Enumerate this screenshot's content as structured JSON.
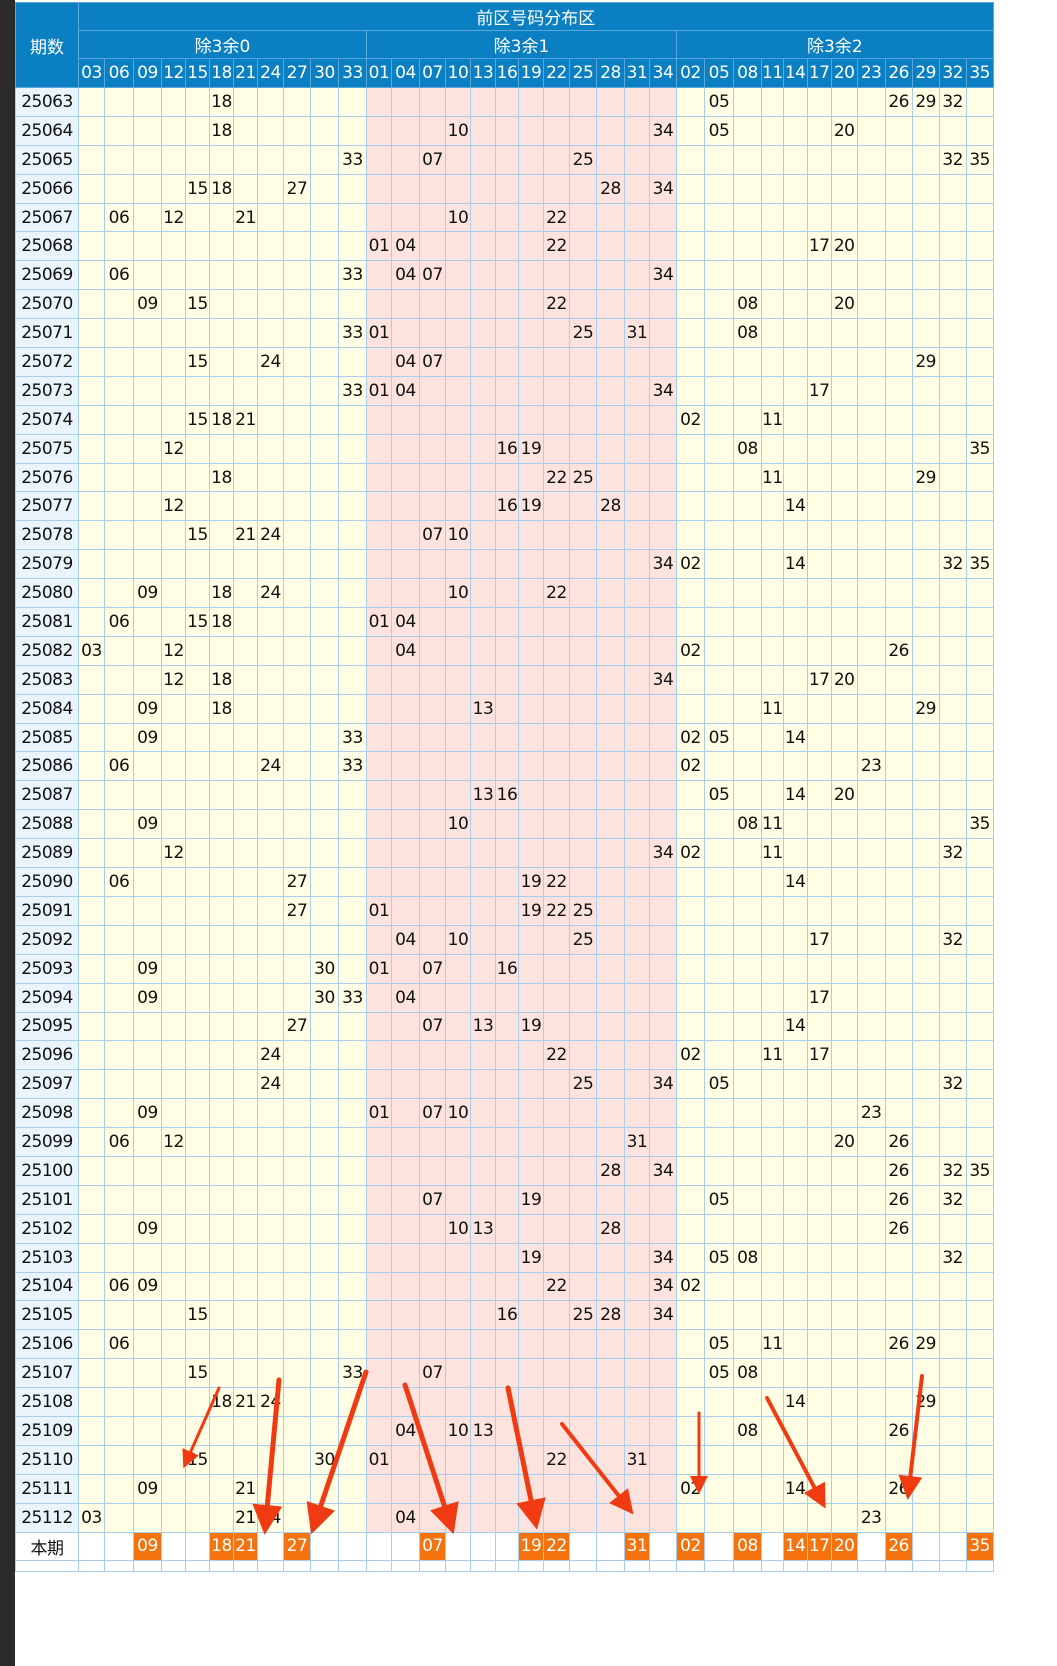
{
  "header": {
    "period_label": "期数",
    "area_title": "前区号码分布区",
    "groups": [
      {
        "label": "除3余0",
        "numbers": [
          "03",
          "06",
          "09",
          "12",
          "15",
          "18",
          "21",
          "24",
          "27",
          "30",
          "33"
        ]
      },
      {
        "label": "除3余1",
        "numbers": [
          "01",
          "04",
          "07",
          "10",
          "13",
          "16",
          "19",
          "22",
          "25",
          "28",
          "31",
          "34"
        ]
      },
      {
        "label": "除3余2",
        "numbers": [
          "02",
          "05",
          "08",
          "11",
          "14",
          "17",
          "20",
          "23",
          "26",
          "29",
          "32",
          "35"
        ]
      }
    ]
  },
  "rows": [
    {
      "period": "25063",
      "nums": [
        "18",
        "05",
        "26",
        "29",
        "32"
      ]
    },
    {
      "period": "25064",
      "nums": [
        "18",
        "10",
        "34",
        "05",
        "20"
      ]
    },
    {
      "period": "25065",
      "nums": [
        "33",
        "07",
        "25",
        "32",
        "35"
      ]
    },
    {
      "period": "25066",
      "nums": [
        "15",
        "18",
        "27",
        "28",
        "34"
      ]
    },
    {
      "period": "25067",
      "nums": [
        "06",
        "12",
        "21",
        "10",
        "22"
      ]
    },
    {
      "period": "25068",
      "nums": [
        "01",
        "04",
        "22",
        "17",
        "20"
      ]
    },
    {
      "period": "25069",
      "nums": [
        "06",
        "33",
        "04",
        "07",
        "34"
      ]
    },
    {
      "period": "25070",
      "nums": [
        "09",
        "15",
        "22",
        "08",
        "20"
      ]
    },
    {
      "period": "25071",
      "nums": [
        "33",
        "01",
        "25",
        "31",
        "08"
      ]
    },
    {
      "period": "25072",
      "nums": [
        "15",
        "24",
        "04",
        "07",
        "29"
      ]
    },
    {
      "period": "25073",
      "nums": [
        "33",
        "01",
        "04",
        "34",
        "17"
      ]
    },
    {
      "period": "25074",
      "nums": [
        "15",
        "18",
        "21",
        "02",
        "11"
      ]
    },
    {
      "period": "25075",
      "nums": [
        "12",
        "16",
        "19",
        "08",
        "35"
      ]
    },
    {
      "period": "25076",
      "nums": [
        "18",
        "22",
        "25",
        "11",
        "29"
      ]
    },
    {
      "period": "25077",
      "nums": [
        "12",
        "16",
        "19",
        "28",
        "14"
      ]
    },
    {
      "period": "25078",
      "nums": [
        "15",
        "21",
        "24",
        "07",
        "10"
      ]
    },
    {
      "period": "25079",
      "nums": [
        "34",
        "02",
        "14",
        "32",
        "35"
      ]
    },
    {
      "period": "25080",
      "nums": [
        "09",
        "18",
        "24",
        "10",
        "22"
      ]
    },
    {
      "period": "25081",
      "nums": [
        "06",
        "15",
        "18",
        "01",
        "04"
      ]
    },
    {
      "period": "25082",
      "nums": [
        "03",
        "12",
        "04",
        "02",
        "26"
      ]
    },
    {
      "period": "25083",
      "nums": [
        "12",
        "18",
        "34",
        "17",
        "20"
      ]
    },
    {
      "period": "25084",
      "nums": [
        "09",
        "18",
        "13",
        "11",
        "29"
      ]
    },
    {
      "period": "25085",
      "nums": [
        "09",
        "33",
        "02",
        "05",
        "14"
      ]
    },
    {
      "period": "25086",
      "nums": [
        "06",
        "24",
        "33",
        "02",
        "23"
      ]
    },
    {
      "period": "25087",
      "nums": [
        "13",
        "16",
        "05",
        "14",
        "20"
      ]
    },
    {
      "period": "25088",
      "nums": [
        "09",
        "10",
        "08",
        "11",
        "35"
      ]
    },
    {
      "period": "25089",
      "nums": [
        "12",
        "34",
        "02",
        "11",
        "32"
      ]
    },
    {
      "period": "25090",
      "nums": [
        "06",
        "27",
        "19",
        "22",
        "14"
      ]
    },
    {
      "period": "25091",
      "nums": [
        "27",
        "01",
        "19",
        "22",
        "25"
      ]
    },
    {
      "period": "25092",
      "nums": [
        "04",
        "10",
        "25",
        "17",
        "32"
      ]
    },
    {
      "period": "25093",
      "nums": [
        "09",
        "30",
        "01",
        "07",
        "16"
      ]
    },
    {
      "period": "25094",
      "nums": [
        "09",
        "30",
        "33",
        "04",
        "17"
      ]
    },
    {
      "period": "25095",
      "nums": [
        "27",
        "07",
        "13",
        "19",
        "14"
      ]
    },
    {
      "period": "25096",
      "nums": [
        "24",
        "22",
        "02",
        "11",
        "17"
      ]
    },
    {
      "period": "25097",
      "nums": [
        "24",
        "25",
        "34",
        "05",
        "32"
      ]
    },
    {
      "period": "25098",
      "nums": [
        "09",
        "01",
        "07",
        "10",
        "23"
      ]
    },
    {
      "period": "25099",
      "nums": [
        "06",
        "12",
        "31",
        "20",
        "26"
      ]
    },
    {
      "period": "25100",
      "nums": [
        "28",
        "34",
        "26",
        "32",
        "35"
      ]
    },
    {
      "period": "25101",
      "nums": [
        "07",
        "19",
        "05",
        "26",
        "32"
      ]
    },
    {
      "period": "25102",
      "nums": [
        "09",
        "10",
        "13",
        "28",
        "26"
      ]
    },
    {
      "period": "25103",
      "nums": [
        "19",
        "34",
        "05",
        "08",
        "32"
      ]
    },
    {
      "period": "25104",
      "nums": [
        "06",
        "09",
        "22",
        "34",
        "02"
      ]
    },
    {
      "period": "25105",
      "nums": [
        "15",
        "16",
        "25",
        "28",
        "34"
      ]
    },
    {
      "period": "25106",
      "nums": [
        "06",
        "05",
        "11",
        "26",
        "29"
      ]
    },
    {
      "period": "25107",
      "nums": [
        "15",
        "33",
        "07",
        "05",
        "08"
      ]
    },
    {
      "period": "25108",
      "nums": [
        "18",
        "21",
        "24",
        "14",
        "29"
      ]
    },
    {
      "period": "25109",
      "nums": [
        "04",
        "10",
        "13",
        "08",
        "26"
      ]
    },
    {
      "period": "25110",
      "nums": [
        "15",
        "30",
        "01",
        "22",
        "31"
      ]
    },
    {
      "period": "25111",
      "nums": [
        "09",
        "21",
        "02",
        "14",
        "26"
      ]
    },
    {
      "period": "25112",
      "nums": [
        "03",
        "21",
        "24",
        "04",
        "23"
      ]
    }
  ],
  "current": {
    "label": "本期",
    "picks": [
      "09",
      "18",
      "21",
      "27",
      "07",
      "19",
      "22",
      "31",
      "02",
      "08",
      "14",
      "17",
      "20",
      "26",
      "35"
    ]
  },
  "colors": {
    "header_bg": "#0a7fc2",
    "group0_bg": "#fffde3",
    "group1_bg": "#fde3dd",
    "group2_bg": "#fffde3",
    "pick_bg": "#f5730f",
    "arrow": "#f03a12"
  }
}
